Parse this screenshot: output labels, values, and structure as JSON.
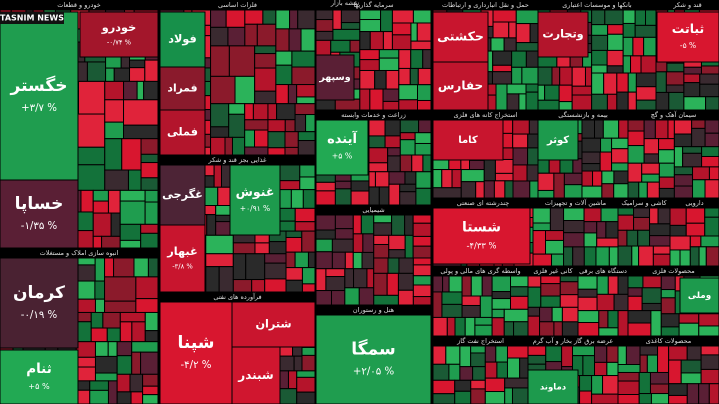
{
  "title": "نقشه بازار",
  "logo": "TASNIM NEWS",
  "sectors": [
    {
      "title": "خودرو و قطعات",
      "tiles": [
        {
          "name": "خگستر",
          "change": "+۳/۷ %",
          "color": "#1f9d4f"
        },
        {
          "name": "خودرو",
          "change": "-۰/۷۴ %",
          "color": "#a3162b"
        },
        {
          "name": "خساپا",
          "change": "-۱/۳۵ %",
          "color": "#5a1f35"
        }
      ]
    },
    {
      "title": "انبوه سازی املاک و مستغلات",
      "tiles": [
        {
          "name": "کرمان",
          "change": "-۰/۱۹ %",
          "color": "#4a2232"
        },
        {
          "name": "ثنام",
          "change": "+۵ %",
          "color": "#22a953"
        }
      ]
    },
    {
      "title": "فلزات اساسی",
      "tiles": [
        {
          "name": "فولاد",
          "color": "#17904a"
        },
        {
          "name": "فملی",
          "color": "#b3152c"
        },
        {
          "name": "فمراد",
          "color": "#8a1a2c"
        }
      ]
    },
    {
      "title": "غذایی بجز قند و شکر",
      "tiles": [
        {
          "name": "غنوش",
          "change": "+۰/۹۱ %",
          "color": "#1d9a4d"
        },
        {
          "name": "غگرجی",
          "color": "#4d2436"
        },
        {
          "name": "غبهار",
          "change": "-۳/۸ %",
          "color": "#c8152e"
        }
      ]
    },
    {
      "title": "فرآورده های نفتی",
      "tiles": [
        {
          "name": "شپنا",
          "change": "-۴/۲ %",
          "color": "#d8162f"
        },
        {
          "name": "شتران",
          "color": "#c9152e"
        },
        {
          "name": "شبندر",
          "color": "#d0162f"
        }
      ]
    },
    {
      "title": "سرمایه گذاریها",
      "tiles": [
        {
          "name": "وسپهر",
          "color": "#5a1f35"
        }
      ]
    },
    {
      "title": "زراعت و خدمات وابسته",
      "tiles": [
        {
          "name": "آینده",
          "change": "+۵ %",
          "color": "#22a953"
        }
      ]
    },
    {
      "title": "شیمیایی",
      "tiles": []
    },
    {
      "title": "هتل و رستوران",
      "tiles": [
        {
          "name": "سمگا",
          "change": "+۲/۰۵ %",
          "color": "#1f9d4f"
        }
      ]
    },
    {
      "title": "حمل و نقل انبارداری و ارتباطات",
      "tiles": [
        {
          "name": "حکشتی",
          "color": "#c8152e"
        },
        {
          "name": "حفارس",
          "color": "#c0152d"
        }
      ]
    },
    {
      "title": "بانکها و موسسات اعتباری",
      "tiles": [
        {
          "name": "وتجارت",
          "color": "#b3152c"
        }
      ]
    },
    {
      "title": "قند و شکر",
      "tiles": [
        {
          "name": "ثباتت",
          "change": "-۵ %",
          "color": "#d8162f"
        }
      ]
    },
    {
      "title": "استخراج کانه های فلزی",
      "tiles": [
        {
          "name": "کاما",
          "color": "#c8152e"
        }
      ]
    },
    {
      "title": "بیمه و بازنشستگی",
      "tiles": [
        {
          "name": "کوثر",
          "color": "#1d9a4d"
        }
      ]
    },
    {
      "title": "سیمان آهک و گچ",
      "tiles": []
    },
    {
      "title": "چندرشته ای صنعتی",
      "tiles": [
        {
          "name": "شستا",
          "change": "-۴/۳۳ %",
          "color": "#d8162f"
        }
      ]
    },
    {
      "title": "ماشین آلات و تجهیزات",
      "tiles": []
    },
    {
      "title": "کاشی و سرامیک",
      "tiles": []
    },
    {
      "title": "دارویی",
      "tiles": []
    },
    {
      "title": "واسطه گری های مالی و پولی",
      "tiles": []
    },
    {
      "title": "کانی غیر فلزی",
      "tiles": []
    },
    {
      "title": "دستگاه های برقی",
      "tiles": []
    },
    {
      "title": "محصولات فلزی",
      "tiles": [
        {
          "name": "وملی",
          "color": "#1d9a4d"
        }
      ]
    },
    {
      "title": "استخراج نفت گاز",
      "tiles": []
    },
    {
      "title": "عرضه برق گاز بخار و آب گرم",
      "tiles": [
        {
          "name": "دماوند",
          "color": "#1d9a4d"
        }
      ]
    },
    {
      "title": "محصولات کاغذی",
      "tiles": []
    }
  ]
}
